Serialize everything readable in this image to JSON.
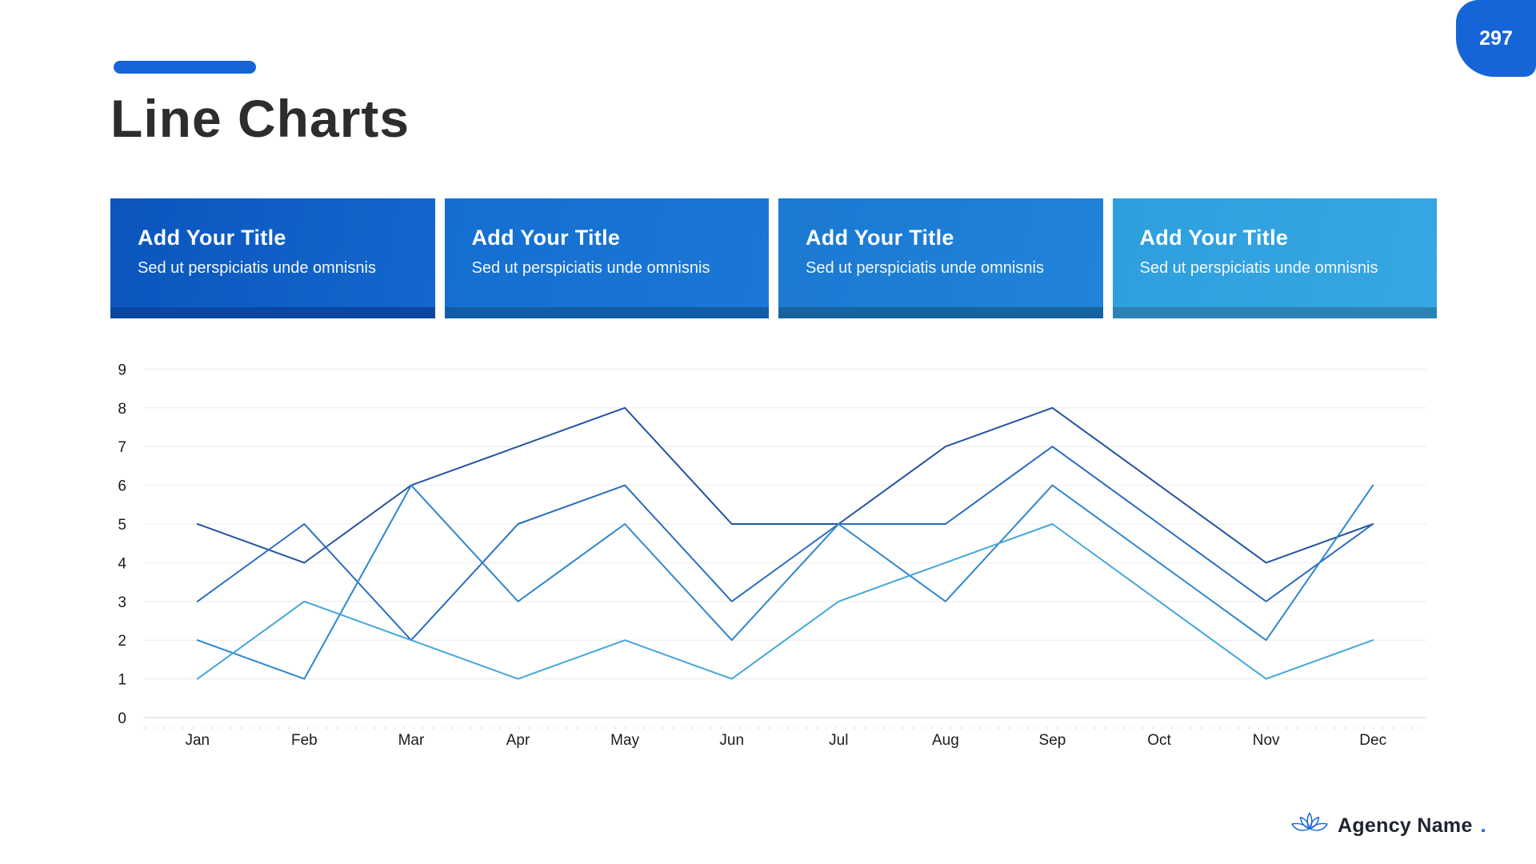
{
  "page": {
    "number": "297"
  },
  "theme": {
    "accent": "#1565d8",
    "title_color": "#2d2d2d"
  },
  "header": {
    "title": "Line Charts"
  },
  "cards": [
    {
      "title": "Add Your Title",
      "subtitle": "Sed ut perspiciatis unde omnisnis",
      "bg": "#0b55bd",
      "bg2": "#1467cd",
      "strip": "#0a47a0"
    },
    {
      "title": "Add Your Title",
      "subtitle": "Sed ut perspiciatis unde omnisnis",
      "bg": "#146fd0",
      "bg2": "#1b77d6",
      "strip": "#115ca6"
    },
    {
      "title": "Add Your Title",
      "subtitle": "Sed ut perspiciatis unde omnisnis",
      "bg": "#1b79d2",
      "bg2": "#2183d9",
      "strip": "#16639f"
    },
    {
      "title": "Add Your Title",
      "subtitle": "Sed ut perspiciatis unde omnisnis",
      "bg": "#2e9edd",
      "bg2": "#37a7e3",
      "strip": "#2a83b3"
    }
  ],
  "chart_data": {
    "type": "line",
    "title": "",
    "xlabel": "",
    "ylabel": "",
    "categories": [
      "Jan",
      "Feb",
      "Mar",
      "Apr",
      "May",
      "Jun",
      "Jul",
      "Aug",
      "Sep",
      "Oct",
      "Nov",
      "Dec"
    ],
    "ylim": [
      0,
      9
    ],
    "yticks": [
      0,
      1,
      2,
      3,
      4,
      5,
      6,
      7,
      8,
      9
    ],
    "grid": true,
    "legend": "none",
    "series": [
      {
        "name": "series-1",
        "color": "#24549f",
        "values": [
          5,
          4,
          6,
          7,
          8,
          5,
          5,
          7,
          8,
          6,
          4,
          5
        ]
      },
      {
        "name": "series-2",
        "color": "#2a6cc0",
        "values": [
          3,
          5,
          2,
          5,
          6,
          3,
          5,
          5,
          7,
          5,
          3,
          5
        ]
      },
      {
        "name": "series-3",
        "color": "#2f87cd",
        "values": [
          2,
          1,
          6,
          3,
          5,
          2,
          5,
          3,
          6,
          4,
          2,
          6
        ]
      },
      {
        "name": "series-4",
        "color": "#45a7da",
        "values": [
          1,
          3,
          2,
          1,
          2,
          1,
          3,
          4,
          5,
          3,
          1,
          2
        ]
      }
    ]
  },
  "footer": {
    "brand": "Agency Name",
    "brand_dot": ".",
    "logo": "lotus-icon"
  }
}
